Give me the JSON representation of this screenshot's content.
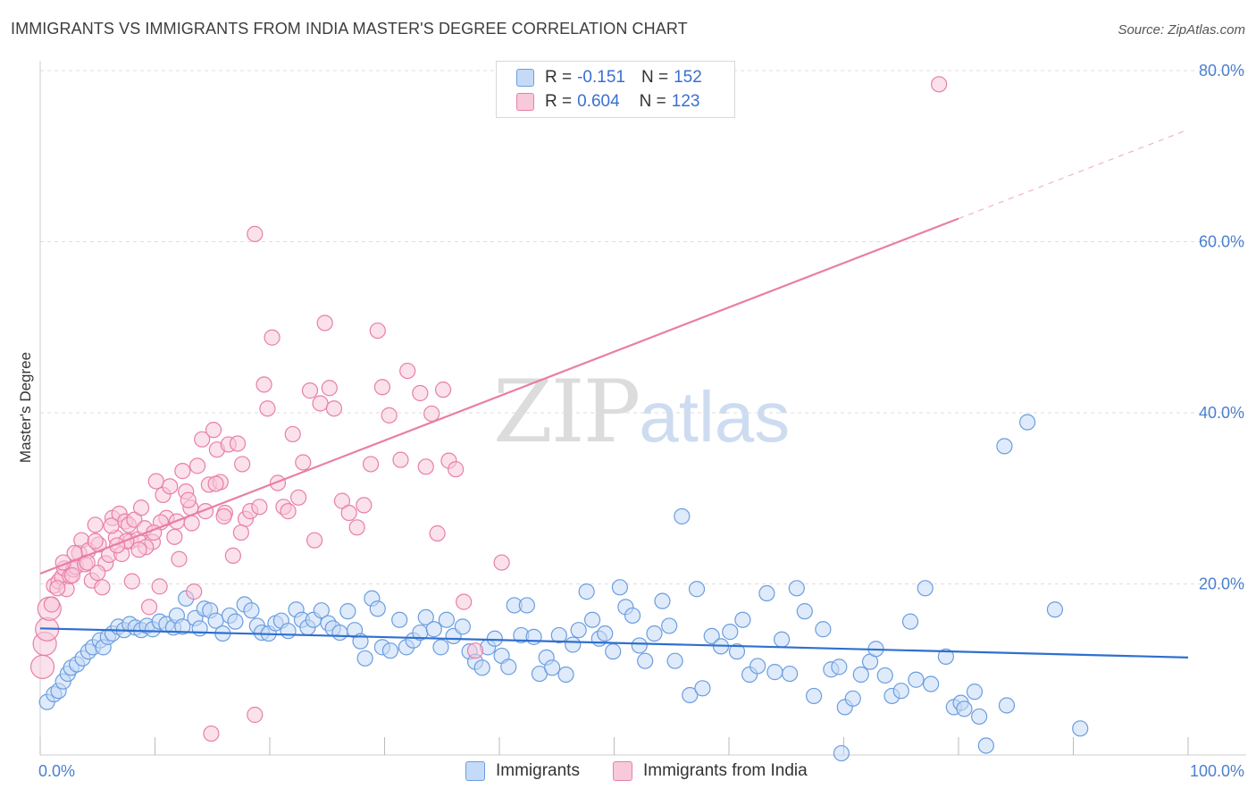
{
  "title": "IMMIGRANTS VS IMMIGRANTS FROM INDIA MASTER'S DEGREE CORRELATION CHART",
  "source": "Source: ZipAtlas.com",
  "watermark": {
    "zip": "ZIP",
    "atlas": "atlas"
  },
  "legend": {
    "rows": [
      {
        "r_label": "R =",
        "r_value": "-0.151",
        "n_label": "N =",
        "n_value": "152",
        "color": "#6b9de0",
        "fill": "#c5daf6"
      },
      {
        "r_label": "R =",
        "r_value": "0.604",
        "n_label": "N =",
        "n_value": "123",
        "color": "#e87fa6",
        "fill": "#f8c9da"
      }
    ]
  },
  "bottom_legend": [
    {
      "label": "Immigrants",
      "color": "#6b9de0",
      "fill": "#c5daf6"
    },
    {
      "label": "Immigrants from India",
      "color": "#e87fa6",
      "fill": "#f8c9da"
    }
  ],
  "chart_data": {
    "type": "scatter",
    "title": "IMMIGRANTS VS IMMIGRANTS FROM INDIA MASTER'S DEGREE CORRELATION CHART",
    "xlabel": "",
    "ylabel": "Master's Degree",
    "xlim": [
      0,
      100
    ],
    "ylim": [
      0,
      80
    ],
    "x_ticks": [
      "0.0%",
      "100.0%"
    ],
    "y_ticks": [
      "20.0%",
      "40.0%",
      "60.0%",
      "80.0%"
    ],
    "y_tick_values": [
      20,
      40,
      60,
      80
    ],
    "grid": true,
    "series": [
      {
        "name": "Immigrants",
        "color": "#6b9de0",
        "fill": "#c5daf6",
        "trend": {
          "x": [
            0,
            100
          ],
          "y": [
            14.8,
            11.4
          ],
          "dashed_from": null
        },
        "points": [
          [
            0.6,
            6.2
          ],
          [
            1.2,
            7.1
          ],
          [
            1.6,
            7.5
          ],
          [
            2.0,
            8.6
          ],
          [
            2.4,
            9.5
          ],
          [
            2.7,
            10.2
          ],
          [
            3.2,
            10.6
          ],
          [
            3.7,
            11.3
          ],
          [
            4.2,
            12.1
          ],
          [
            4.6,
            12.6
          ],
          [
            5.2,
            13.4
          ],
          [
            5.5,
            12.6
          ],
          [
            5.9,
            13.8
          ],
          [
            6.3,
            14.2
          ],
          [
            6.8,
            15.0
          ],
          [
            7.3,
            14.6
          ],
          [
            7.8,
            15.3
          ],
          [
            8.3,
            14.9
          ],
          [
            8.8,
            14.6
          ],
          [
            9.3,
            15.1
          ],
          [
            9.8,
            14.7
          ],
          [
            10.4,
            15.6
          ],
          [
            11.0,
            15.3
          ],
          [
            11.6,
            14.9
          ],
          [
            11.9,
            16.3
          ],
          [
            12.4,
            15.0
          ],
          [
            12.7,
            18.3
          ],
          [
            13.5,
            16.0
          ],
          [
            13.9,
            14.8
          ],
          [
            14.3,
            17.1
          ],
          [
            14.8,
            16.9
          ],
          [
            15.3,
            15.7
          ],
          [
            15.9,
            14.2
          ],
          [
            16.5,
            16.3
          ],
          [
            17.0,
            15.6
          ],
          [
            17.8,
            17.6
          ],
          [
            18.4,
            16.9
          ],
          [
            18.9,
            15.1
          ],
          [
            19.3,
            14.3
          ],
          [
            19.9,
            14.2
          ],
          [
            20.5,
            15.4
          ],
          [
            21.0,
            15.7
          ],
          [
            21.6,
            14.5
          ],
          [
            22.3,
            17.0
          ],
          [
            22.8,
            15.8
          ],
          [
            23.3,
            14.9
          ],
          [
            23.8,
            15.8
          ],
          [
            24.5,
            16.9
          ],
          [
            25.1,
            15.4
          ],
          [
            25.5,
            14.8
          ],
          [
            26.1,
            14.3
          ],
          [
            26.8,
            16.8
          ],
          [
            27.4,
            14.6
          ],
          [
            27.9,
            13.3
          ],
          [
            28.3,
            11.3
          ],
          [
            28.9,
            18.3
          ],
          [
            29.4,
            17.1
          ],
          [
            29.8,
            12.6
          ],
          [
            30.5,
            12.2
          ],
          [
            31.3,
            15.8
          ],
          [
            31.9,
            12.6
          ],
          [
            32.5,
            13.4
          ],
          [
            33.1,
            14.3
          ],
          [
            33.6,
            16.1
          ],
          [
            34.3,
            14.7
          ],
          [
            34.9,
            12.6
          ],
          [
            35.4,
            15.8
          ],
          [
            36.0,
            13.9
          ],
          [
            36.8,
            15.0
          ],
          [
            37.4,
            12.1
          ],
          [
            37.9,
            10.9
          ],
          [
            38.5,
            10.2
          ],
          [
            39.0,
            12.6
          ],
          [
            39.6,
            13.6
          ],
          [
            40.2,
            11.6
          ],
          [
            40.8,
            10.3
          ],
          [
            41.3,
            17.5
          ],
          [
            41.9,
            14.0
          ],
          [
            42.4,
            17.5
          ],
          [
            43.0,
            13.8
          ],
          [
            43.5,
            9.5
          ],
          [
            44.1,
            11.4
          ],
          [
            44.6,
            10.2
          ],
          [
            45.2,
            14.0
          ],
          [
            45.8,
            9.4
          ],
          [
            46.4,
            12.9
          ],
          [
            46.9,
            14.6
          ],
          [
            47.6,
            19.1
          ],
          [
            48.1,
            15.8
          ],
          [
            48.7,
            13.6
          ],
          [
            49.2,
            14.2
          ],
          [
            49.9,
            12.1
          ],
          [
            50.5,
            19.6
          ],
          [
            51.0,
            17.3
          ],
          [
            51.6,
            16.3
          ],
          [
            52.2,
            12.8
          ],
          [
            52.7,
            11.0
          ],
          [
            53.5,
            14.2
          ],
          [
            54.2,
            18.0
          ],
          [
            54.8,
            15.1
          ],
          [
            55.3,
            11.0
          ],
          [
            55.9,
            27.9
          ],
          [
            56.6,
            7.0
          ],
          [
            57.2,
            19.4
          ],
          [
            57.7,
            7.8
          ],
          [
            58.5,
            13.9
          ],
          [
            59.3,
            12.7
          ],
          [
            60.1,
            14.4
          ],
          [
            60.7,
            12.1
          ],
          [
            61.2,
            15.8
          ],
          [
            61.8,
            9.4
          ],
          [
            62.5,
            10.4
          ],
          [
            63.3,
            18.9
          ],
          [
            64.0,
            9.7
          ],
          [
            64.6,
            13.5
          ],
          [
            65.3,
            9.5
          ],
          [
            65.9,
            19.5
          ],
          [
            66.6,
            16.8
          ],
          [
            67.4,
            6.9
          ],
          [
            68.2,
            14.7
          ],
          [
            68.9,
            10.0
          ],
          [
            69.6,
            10.3
          ],
          [
            70.1,
            5.6
          ],
          [
            70.8,
            6.6
          ],
          [
            71.5,
            9.4
          ],
          [
            72.3,
            10.9
          ],
          [
            72.8,
            12.4
          ],
          [
            73.6,
            9.3
          ],
          [
            74.2,
            6.9
          ],
          [
            75.0,
            7.5
          ],
          [
            75.8,
            15.6
          ],
          [
            76.3,
            8.8
          ],
          [
            77.1,
            19.5
          ],
          [
            77.6,
            8.3
          ],
          [
            78.9,
            11.5
          ],
          [
            79.6,
            5.6
          ],
          [
            80.2,
            6.1
          ],
          [
            80.5,
            5.4
          ],
          [
            81.4,
            7.4
          ],
          [
            81.8,
            4.5
          ],
          [
            82.4,
            1.1
          ],
          [
            84.2,
            5.8
          ],
          [
            84.0,
            36.1
          ],
          [
            86.0,
            38.9
          ],
          [
            88.4,
            17.0
          ],
          [
            90.6,
            3.1
          ],
          [
            69.8,
            0.2
          ]
        ]
      },
      {
        "name": "Immigrants from India",
        "color": "#e87fa6",
        "fill": "#f8c9da",
        "trend": {
          "x": [
            0,
            80,
            100
          ],
          "y": [
            21.2,
            62.7,
            73.1
          ],
          "dashed_from": 80
        },
        "points": [
          [
            0.2,
            10.3
          ],
          [
            0.4,
            13.0
          ],
          [
            0.6,
            14.7
          ],
          [
            0.8,
            17.1
          ],
          [
            1.2,
            19.8
          ],
          [
            1.6,
            20.3
          ],
          [
            1.9,
            20.8
          ],
          [
            2.1,
            21.8
          ],
          [
            2.3,
            19.4
          ],
          [
            2.6,
            20.9
          ],
          [
            2.9,
            21.7
          ],
          [
            3.1,
            22.0
          ],
          [
            3.4,
            23.6
          ],
          [
            3.6,
            25.1
          ],
          [
            3.9,
            22.3
          ],
          [
            4.2,
            23.9
          ],
          [
            4.5,
            20.4
          ],
          [
            4.8,
            26.9
          ],
          [
            5.1,
            24.6
          ],
          [
            5.4,
            19.6
          ],
          [
            5.7,
            22.4
          ],
          [
            6.0,
            23.4
          ],
          [
            6.3,
            27.7
          ],
          [
            6.6,
            25.4
          ],
          [
            6.9,
            28.2
          ],
          [
            7.1,
            23.5
          ],
          [
            7.4,
            27.3
          ],
          [
            7.7,
            26.9
          ],
          [
            7.9,
            25.0
          ],
          [
            8.2,
            27.5
          ],
          [
            8.5,
            25.2
          ],
          [
            8.8,
            28.9
          ],
          [
            9.1,
            26.5
          ],
          [
            9.5,
            17.3
          ],
          [
            9.8,
            24.9
          ],
          [
            10.1,
            32.0
          ],
          [
            10.4,
            19.7
          ],
          [
            10.7,
            30.4
          ],
          [
            11.0,
            27.7
          ],
          [
            11.3,
            31.4
          ],
          [
            11.7,
            25.5
          ],
          [
            12.1,
            22.9
          ],
          [
            12.4,
            33.2
          ],
          [
            12.7,
            30.8
          ],
          [
            13.1,
            28.9
          ],
          [
            13.4,
            19.1
          ],
          [
            13.7,
            33.8
          ],
          [
            14.1,
            36.9
          ],
          [
            14.4,
            28.5
          ],
          [
            14.7,
            31.6
          ],
          [
            15.1,
            38.0
          ],
          [
            15.4,
            35.7
          ],
          [
            15.7,
            31.9
          ],
          [
            16.1,
            28.3
          ],
          [
            16.4,
            36.3
          ],
          [
            16.8,
            23.3
          ],
          [
            17.2,
            36.4
          ],
          [
            17.6,
            34.0
          ],
          [
            17.9,
            27.6
          ],
          [
            18.3,
            28.5
          ],
          [
            18.7,
            60.9
          ],
          [
            19.1,
            29.0
          ],
          [
            19.5,
            43.3
          ],
          [
            19.8,
            40.5
          ],
          [
            20.2,
            48.8
          ],
          [
            20.7,
            31.8
          ],
          [
            21.2,
            29.0
          ],
          [
            21.6,
            28.5
          ],
          [
            22.0,
            37.5
          ],
          [
            22.5,
            30.1
          ],
          [
            22.9,
            34.2
          ],
          [
            23.5,
            42.6
          ],
          [
            23.9,
            25.1
          ],
          [
            24.4,
            41.1
          ],
          [
            24.8,
            50.5
          ],
          [
            25.2,
            42.9
          ],
          [
            25.6,
            40.5
          ],
          [
            26.3,
            29.7
          ],
          [
            26.9,
            28.3
          ],
          [
            27.6,
            26.6
          ],
          [
            28.2,
            29.2
          ],
          [
            28.8,
            34.0
          ],
          [
            29.4,
            49.6
          ],
          [
            29.8,
            43.0
          ],
          [
            30.4,
            39.7
          ],
          [
            31.4,
            34.5
          ],
          [
            32.0,
            44.9
          ],
          [
            33.1,
            42.3
          ],
          [
            33.6,
            33.7
          ],
          [
            34.1,
            39.9
          ],
          [
            34.6,
            25.9
          ],
          [
            35.1,
            42.7
          ],
          [
            35.6,
            34.4
          ],
          [
            36.2,
            33.4
          ],
          [
            36.9,
            17.9
          ],
          [
            37.9,
            12.2
          ],
          [
            40.2,
            22.5
          ],
          [
            78.3,
            78.4
          ],
          [
            18.7,
            4.7
          ],
          [
            14.9,
            2.5
          ],
          [
            4.8,
            25.0
          ],
          [
            6.2,
            26.8
          ],
          [
            8.0,
            20.3
          ],
          [
            9.2,
            24.3
          ],
          [
            10.5,
            27.2
          ],
          [
            12.9,
            29.8
          ],
          [
            16.0,
            27.9
          ],
          [
            3.0,
            23.6
          ],
          [
            5.0,
            21.3
          ],
          [
            2.0,
            22.5
          ],
          [
            1.5,
            19.5
          ],
          [
            7.5,
            25.0
          ],
          [
            11.9,
            27.3
          ],
          [
            13.2,
            27.1
          ],
          [
            17.5,
            26.0
          ],
          [
            15.3,
            31.7
          ],
          [
            6.7,
            24.5
          ],
          [
            9.9,
            26.0
          ],
          [
            2.8,
            21.0
          ],
          [
            4.1,
            22.5
          ],
          [
            1.0,
            17.6
          ],
          [
            8.6,
            24.0
          ]
        ]
      }
    ]
  }
}
